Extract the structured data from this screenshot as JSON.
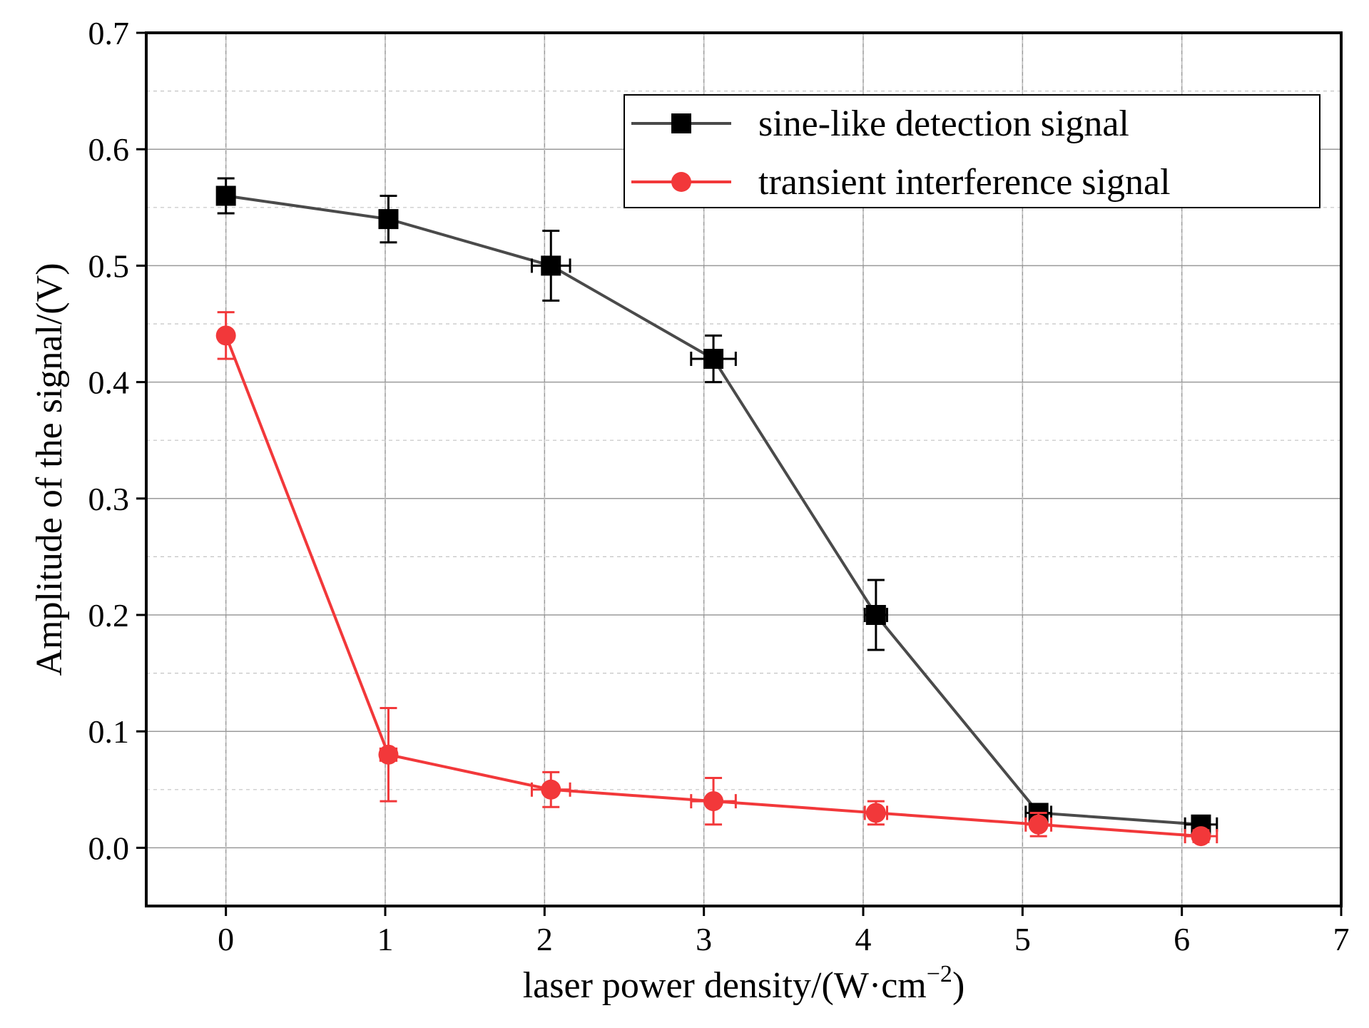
{
  "chart_data": {
    "type": "line",
    "title": "",
    "xlabel": "laser power density/(W·cm",
    "xlabel_sup": "−2",
    "xlabel_end": ")",
    "ylabel": "Amplitude of the signal/(V)",
    "xlim": [
      -0.5,
      7
    ],
    "ylim": [
      -0.05,
      0.7
    ],
    "xticks": [
      0,
      1,
      2,
      3,
      4,
      5,
      6,
      7
    ],
    "yticks": [
      0.0,
      0.1,
      0.2,
      0.3,
      0.4,
      0.5,
      0.6,
      0.7
    ],
    "xtick_labels": [
      "0",
      "1",
      "2",
      "3",
      "4",
      "5",
      "6",
      "7"
    ],
    "ytick_labels": [
      "0.0",
      "0.1",
      "0.2",
      "0.3",
      "0.4",
      "0.5",
      "0.6",
      "0.7"
    ],
    "grid": true,
    "legend_position": "top-right",
    "series": [
      {
        "name": "sine-like detection signal",
        "color": "#4a4a4a",
        "marker_color": "#000000",
        "marker": "square",
        "x": [
          0,
          1.02,
          2.04,
          3.06,
          4.08,
          5.1,
          6.12
        ],
        "y": [
          0.56,
          0.54,
          0.5,
          0.42,
          0.2,
          0.03,
          0.02
        ],
        "yerr": [
          0.015,
          0.02,
          0.03,
          0.02,
          0.03,
          0.005,
          0.005
        ],
        "xerr": [
          0,
          0.05,
          0.12,
          0.14,
          0.07,
          0.08,
          0.1
        ]
      },
      {
        "name": "transient interference signal",
        "color": "#f2383a",
        "marker_color": "#f2383a",
        "marker": "circle",
        "x": [
          0,
          1.02,
          2.04,
          3.06,
          4.08,
          5.1,
          6.12
        ],
        "y": [
          0.44,
          0.08,
          0.05,
          0.04,
          0.03,
          0.02,
          0.01
        ],
        "yerr": [
          0.02,
          0.04,
          0.015,
          0.02,
          0.01,
          0.01,
          0.005
        ],
        "xerr": [
          0,
          0.05,
          0.12,
          0.14,
          0.07,
          0.08,
          0.1
        ]
      }
    ]
  }
}
